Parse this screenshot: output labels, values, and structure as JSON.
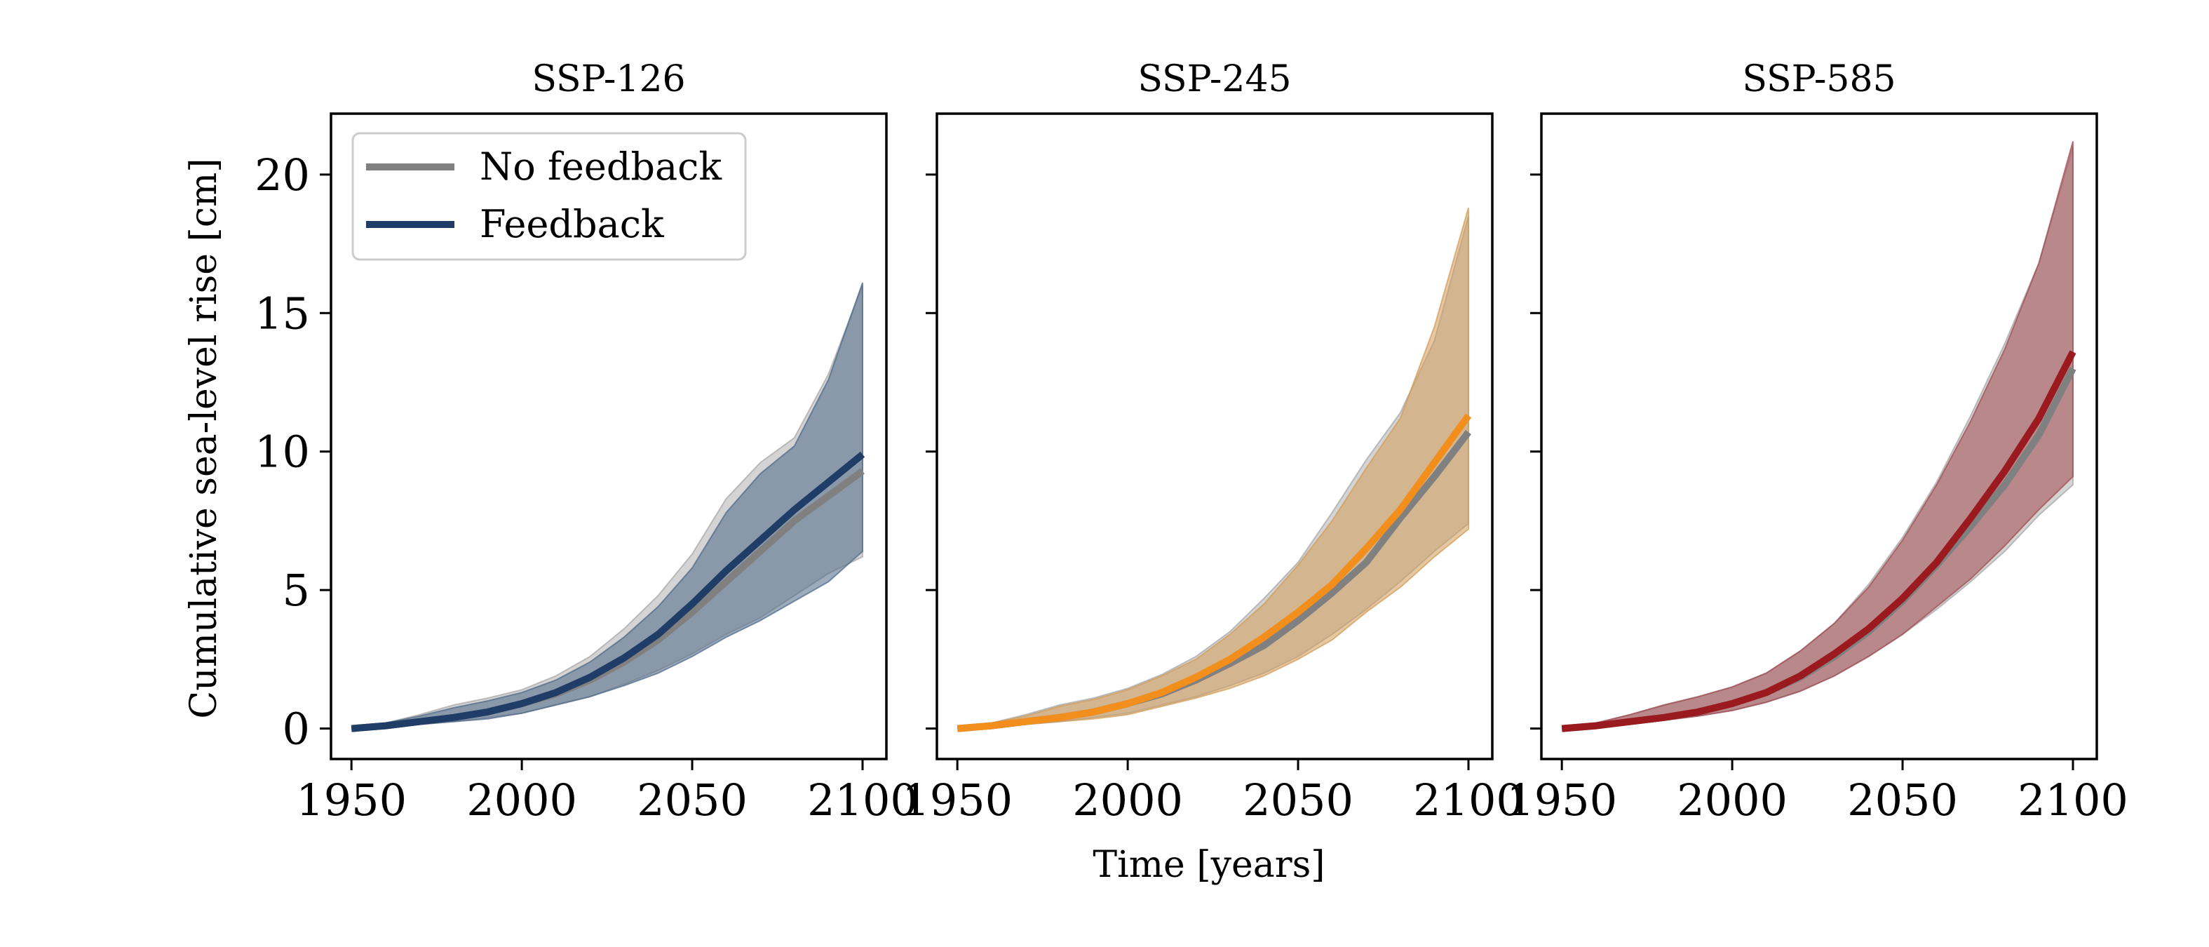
{
  "chart_data": {
    "type": "line",
    "ylabel": "Cumulative sea-level rise [cm]",
    "xlabel": "Time [years]",
    "xlim": [
      1944,
      2107
    ],
    "ylim": [
      -1.1,
      22.2
    ],
    "xticks": [
      1950,
      2000,
      2050,
      2100
    ],
    "yticks": [
      0,
      5,
      10,
      15,
      20
    ],
    "legend": {
      "placement": "top-left of first panel",
      "entries": [
        {
          "label": "No feedback",
          "color": "#808080"
        },
        {
          "label": "Feedback",
          "color": "#1f3d66"
        }
      ]
    },
    "x": [
      1950,
      1960,
      1970,
      1980,
      1990,
      2000,
      2010,
      2020,
      2030,
      2040,
      2050,
      2060,
      2070,
      2080,
      2090,
      2100
    ],
    "panels": [
      {
        "title": "SSP-126",
        "feedback_color": "#1f3d66",
        "band_color": "#4a6787",
        "series": [
          {
            "name": "No feedback",
            "values": [
              0.0,
              0.1,
              0.25,
              0.4,
              0.6,
              0.9,
              1.25,
              1.75,
              2.4,
              3.2,
              4.2,
              5.3,
              6.4,
              7.5,
              8.4,
              9.3
            ],
            "lower": [
              0.0,
              0.05,
              0.15,
              0.25,
              0.4,
              0.55,
              0.85,
              1.15,
              1.6,
              2.1,
              2.7,
              3.4,
              4.0,
              4.8,
              5.6,
              6.2
            ],
            "upper": [
              0.0,
              0.2,
              0.5,
              0.85,
              1.1,
              1.4,
              1.9,
              2.6,
              3.6,
              4.8,
              6.3,
              8.3,
              9.6,
              10.5,
              12.8,
              16.0
            ]
          },
          {
            "name": "Feedback",
            "values": [
              0.0,
              0.1,
              0.25,
              0.4,
              0.6,
              0.9,
              1.3,
              1.85,
              2.55,
              3.4,
              4.5,
              5.7,
              6.8,
              7.9,
              8.9,
              9.9
            ],
            "lower": [
              0.0,
              0.05,
              0.15,
              0.25,
              0.35,
              0.55,
              0.85,
              1.15,
              1.55,
              2.0,
              2.6,
              3.3,
              3.9,
              4.6,
              5.3,
              6.4
            ],
            "upper": [
              0.0,
              0.2,
              0.45,
              0.75,
              1.0,
              1.3,
              1.75,
              2.4,
              3.3,
              4.4,
              5.8,
              7.8,
              9.2,
              10.2,
              12.6,
              16.1
            ]
          }
        ]
      },
      {
        "title": "SSP-245",
        "feedback_color": "#f28e1c",
        "band_color": "#d19a55",
        "series": [
          {
            "name": "No feedback",
            "values": [
              0.0,
              0.1,
              0.25,
              0.4,
              0.6,
              0.9,
              1.25,
              1.75,
              2.35,
              3.0,
              3.9,
              4.9,
              6.0,
              7.6,
              9.1,
              10.7
            ],
            "lower": [
              0.0,
              0.05,
              0.15,
              0.25,
              0.4,
              0.55,
              0.85,
              1.15,
              1.55,
              2.0,
              2.6,
              3.4,
              4.3,
              5.3,
              6.4,
              7.4
            ],
            "upper": [
              0.0,
              0.2,
              0.5,
              0.85,
              1.1,
              1.45,
              1.95,
              2.6,
              3.5,
              4.7,
              6.0,
              7.8,
              9.7,
              11.4,
              14.0,
              18.5
            ]
          },
          {
            "name": "Feedback",
            "values": [
              0.0,
              0.1,
              0.25,
              0.4,
              0.6,
              0.9,
              1.3,
              1.85,
              2.5,
              3.3,
              4.2,
              5.2,
              6.5,
              7.9,
              9.6,
              11.3
            ],
            "lower": [
              0.0,
              0.05,
              0.15,
              0.25,
              0.35,
              0.5,
              0.8,
              1.1,
              1.45,
              1.9,
              2.5,
              3.2,
              4.2,
              5.1,
              6.2,
              7.2
            ],
            "upper": [
              0.0,
              0.2,
              0.45,
              0.8,
              1.05,
              1.4,
              1.9,
              2.5,
              3.4,
              4.5,
              5.9,
              7.5,
              9.4,
              11.2,
              14.5,
              18.8
            ]
          }
        ]
      },
      {
        "title": "SSP-585",
        "feedback_color": "#9b1a1f",
        "band_color": "#a0484e",
        "series": [
          {
            "name": "No feedback",
            "values": [
              0.0,
              0.1,
              0.25,
              0.4,
              0.6,
              0.9,
              1.3,
              1.85,
              2.6,
              3.5,
              4.6,
              5.9,
              7.3,
              8.8,
              10.6,
              13.0
            ],
            "lower": [
              0.0,
              0.05,
              0.15,
              0.3,
              0.45,
              0.65,
              0.95,
              1.35,
              1.9,
              2.6,
              3.4,
              4.3,
              5.3,
              6.4,
              7.7,
              8.8
            ],
            "upper": [
              0.0,
              0.2,
              0.5,
              0.85,
              1.15,
              1.5,
              2.0,
              2.8,
              3.8,
              5.2,
              6.9,
              8.9,
              11.3,
              13.9,
              16.8,
              21.0
            ]
          },
          {
            "name": "Feedback",
            "values": [
              0.0,
              0.1,
              0.25,
              0.4,
              0.6,
              0.9,
              1.3,
              1.9,
              2.7,
              3.6,
              4.7,
              6.0,
              7.6,
              9.3,
              11.2,
              13.6
            ],
            "lower": [
              0.0,
              0.05,
              0.15,
              0.3,
              0.45,
              0.65,
              0.95,
              1.35,
              1.9,
              2.6,
              3.4,
              4.4,
              5.4,
              6.6,
              7.9,
              9.1
            ],
            "upper": [
              0.0,
              0.2,
              0.5,
              0.85,
              1.15,
              1.5,
              2.0,
              2.8,
              3.8,
              5.1,
              6.8,
              8.8,
              11.1,
              13.7,
              16.8,
              21.2
            ]
          }
        ]
      }
    ]
  }
}
